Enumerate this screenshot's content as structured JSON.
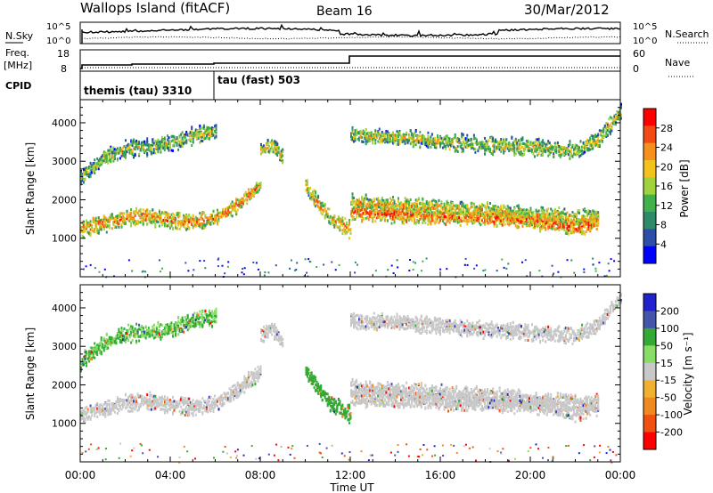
{
  "header": {
    "station": "Wallops Island (fitACF)",
    "beam": "Beam 16",
    "date": "30/Mar/2012"
  },
  "noise_panel": {
    "left_label": "N.Sky",
    "right_label": "N.Search",
    "left_ticks": [
      "10^5",
      "10^0"
    ],
    "right_ticks": [
      "10^5",
      "10^0"
    ]
  },
  "freq_panel": {
    "left_label_1": "Freq.",
    "left_label_2": "[MHz]",
    "right_label": "Nave",
    "left_ticks": [
      "18",
      "8"
    ],
    "right_ticks": [
      "60",
      "0"
    ]
  },
  "cpid_panel": {
    "label": "CPID",
    "segments": [
      {
        "name": "themis (tau) 3310",
        "start_hour": 0,
        "end_hour": 6
      },
      {
        "name": "tau (fast) 503",
        "start_hour": 6,
        "end_hour": 24
      }
    ]
  },
  "colors": {
    "power_scale": [
      "#0000ff",
      "#2e4fa8",
      "#2f8a6a",
      "#41b04a",
      "#9fd23c",
      "#f2c31c",
      "#f5901c",
      "#f24a12",
      "#ff0000"
    ],
    "velocity_scale": [
      "#2222cc",
      "#4455aa",
      "#33aa33",
      "#88dd66",
      "#c8c8c8",
      "#f0b030",
      "#f08a20",
      "#f05010",
      "#ff0000"
    ]
  },
  "chart_data": [
    {
      "type": "heatmap",
      "name_hint": "power",
      "ylabel": "Slant Range [km]",
      "xlabel": "Time UT",
      "xlim": [
        0,
        24
      ],
      "ylim": [
        0,
        4600
      ],
      "x_ticks": [
        "00:00",
        "04:00",
        "08:00",
        "12:00",
        "16:00",
        "20:00",
        "00:00"
      ],
      "y_ticks": [
        1000,
        2000,
        3000,
        4000
      ],
      "colorbar": {
        "label": "Power [dB]",
        "ticks": [
          4,
          8,
          12,
          16,
          20,
          24,
          28
        ],
        "range": [
          0,
          30
        ]
      },
      "bands": [
        {
          "x": [
            0.0,
            1.0,
            2.0,
            3.0,
            4.0,
            5.0,
            6.0,
            7.0,
            8.0
          ],
          "y": [
            1250,
            1400,
            1550,
            1600,
            1500,
            1450,
            1550,
            1900,
            2400
          ],
          "value": 22
        },
        {
          "x": [
            0.0,
            1.0,
            2.0,
            3.0,
            4.0,
            5.0,
            6.0
          ],
          "y": [
            2600,
            3100,
            3350,
            3400,
            3500,
            3700,
            3800
          ],
          "value": 16
        },
        {
          "x": [
            8.0,
            8.5,
            9.0
          ],
          "y": [
            3300,
            3500,
            3100
          ],
          "value": 18
        },
        {
          "x": [
            10.0,
            10.6,
            11.2,
            12.0
          ],
          "y": [
            2400,
            1900,
            1500,
            1250
          ],
          "value": 20
        },
        {
          "x": [
            12.0,
            14.0,
            16.0,
            18.0,
            20.0,
            22.0,
            23.0
          ],
          "y": [
            1950,
            1900,
            1800,
            1750,
            1650,
            1550,
            1600
          ],
          "value": 19
        },
        {
          "x": [
            12.0,
            14.0,
            16.0,
            18.0,
            20.0,
            22.0,
            23.0
          ],
          "y": [
            1700,
            1650,
            1600,
            1550,
            1500,
            1300,
            1450
          ],
          "value": 24
        },
        {
          "x": [
            12.0,
            14.0,
            16.0,
            18.0,
            20.0,
            22.0,
            23.0,
            24.0
          ],
          "y": [
            3700,
            3650,
            3550,
            3450,
            3400,
            3300,
            3600,
            4300
          ],
          "value": 17
        }
      ]
    },
    {
      "type": "heatmap",
      "name_hint": "velocity",
      "ylabel": "Slant Range [km]",
      "xlabel": "Time UT",
      "xlim": [
        0,
        24
      ],
      "ylim": [
        0,
        4600
      ],
      "x_ticks": [
        "00:00",
        "04:00",
        "08:00",
        "12:00",
        "16:00",
        "20:00",
        "00:00"
      ],
      "y_ticks": [
        1000,
        2000,
        3000,
        4000
      ],
      "colorbar": {
        "label": "Velocity [m s⁻¹]",
        "ticks": [
          200,
          100,
          50,
          15,
          -15,
          -50,
          -100,
          -200
        ]
      },
      "bands": [
        {
          "x": [
            0.0,
            1.0,
            2.0,
            3.0,
            4.0,
            5.0,
            6.0,
            7.0,
            8.0
          ],
          "y": [
            1250,
            1400,
            1550,
            1600,
            1500,
            1450,
            1550,
            1900,
            2400
          ],
          "value": 0
        },
        {
          "x": [
            0.0,
            1.0,
            2.0,
            3.0,
            4.0,
            5.0,
            6.0
          ],
          "y": [
            2600,
            3100,
            3350,
            3400,
            3500,
            3700,
            3800
          ],
          "value": 30
        },
        {
          "x": [
            8.0,
            8.5,
            9.0
          ],
          "y": [
            3300,
            3500,
            3100
          ],
          "value": 0
        },
        {
          "x": [
            10.0,
            10.6,
            11.2,
            12.0
          ],
          "y": [
            2400,
            1900,
            1500,
            1250
          ],
          "value": 40
        },
        {
          "x": [
            12.0,
            14.0,
            16.0,
            18.0,
            20.0,
            22.0,
            23.0
          ],
          "y": [
            1950,
            1900,
            1800,
            1750,
            1650,
            1550,
            1600
          ],
          "value": 0
        },
        {
          "x": [
            12.0,
            14.0,
            16.0,
            18.0,
            20.0,
            22.0,
            23.0
          ],
          "y": [
            1700,
            1650,
            1600,
            1550,
            1500,
            1300,
            1450
          ],
          "value": 0
        },
        {
          "x": [
            12.0,
            14.0,
            16.0,
            18.0,
            20.0,
            22.0,
            23.0,
            24.0
          ],
          "y": [
            3700,
            3650,
            3550,
            3450,
            3400,
            3300,
            3600,
            4300
          ],
          "value": 0
        }
      ]
    }
  ]
}
